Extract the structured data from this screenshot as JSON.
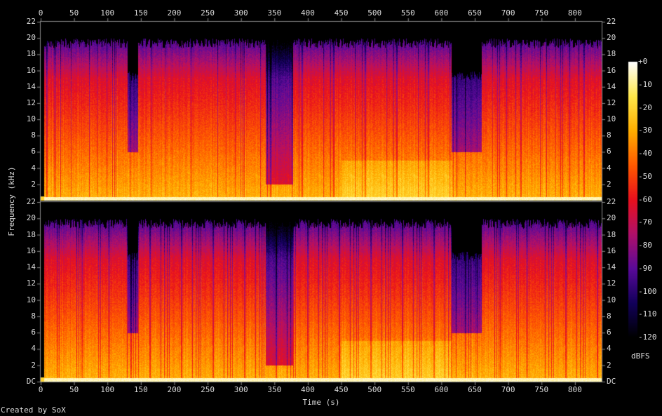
{
  "chart_data": {
    "type": "heatmap",
    "subtype": "spectrogram",
    "channels": 2,
    "xlabel": "Time (s)",
    "ylabel": "Frequency (kHz)",
    "xlim": [
      0,
      840
    ],
    "ylim": [
      0,
      22
    ],
    "x_ticks": [
      "0",
      "50",
      "100",
      "150",
      "200",
      "250",
      "300",
      "350",
      "400",
      "450",
      "500",
      "550",
      "600",
      "650",
      "700",
      "750",
      "800"
    ],
    "y_ticks": [
      "DC",
      "2",
      "4",
      "6",
      "8",
      "10",
      "12",
      "14",
      "16",
      "18",
      "20",
      "22"
    ],
    "y_ticks_top_channel": [
      "2",
      "4",
      "6",
      "8",
      "10",
      "12",
      "14",
      "16",
      "18",
      "20",
      "22"
    ],
    "colorbar": {
      "label": "dBFS",
      "range": [
        -120,
        0
      ],
      "ticks": [
        "+0",
        "-10",
        "-20",
        "-30",
        "-40",
        "-50",
        "-60",
        "-70",
        "-80",
        "-90",
        "-100",
        "-110",
        "-120"
      ],
      "colormap": [
        "#000000",
        "#12005a",
        "#5a0a9a",
        "#b0106a",
        "#e8101e",
        "#ff5a00",
        "#ffae00",
        "#ffe84a",
        "#ffffff"
      ]
    },
    "segments": [
      {
        "start": 0,
        "end": 5,
        "cutoff_khz": 20,
        "level": "quiet"
      },
      {
        "start": 5,
        "end": 130,
        "cutoff_khz": 20,
        "level": "loud"
      },
      {
        "start": 130,
        "end": 145,
        "cutoff_khz": 16,
        "level": "dim above 6 kHz"
      },
      {
        "start": 145,
        "end": 337,
        "cutoff_khz": 20,
        "level": "loud"
      },
      {
        "start": 337,
        "end": 378,
        "cutoff_khz": 20,
        "level": "dim above 2 kHz"
      },
      {
        "start": 378,
        "end": 450,
        "cutoff_khz": 20,
        "level": "loud"
      },
      {
        "start": 450,
        "end": 615,
        "cutoff_khz": 20,
        "level": "loud, bright lows"
      },
      {
        "start": 615,
        "end": 660,
        "cutoff_khz": 16,
        "level": "dim above 6 kHz"
      },
      {
        "start": 660,
        "end": 840,
        "cutoff_khz": 20,
        "level": "loud"
      }
    ]
  },
  "footer": {
    "credit": "Created by SoX"
  }
}
